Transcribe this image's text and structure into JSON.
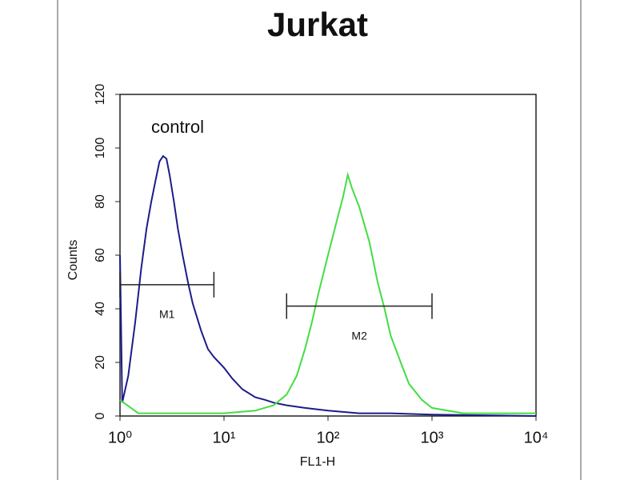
{
  "chart_data": {
    "type": "line",
    "title": "Jurkat",
    "xlabel": "FL1-H",
    "ylabel": "Counts",
    "xscale": "log",
    "xlim": [
      1,
      10000
    ],
    "xticks": [
      {
        "value": 1,
        "label": "10⁰"
      },
      {
        "value": 10,
        "label": "10¹"
      },
      {
        "value": 100,
        "label": "10²"
      },
      {
        "value": 1000,
        "label": "10³"
      },
      {
        "value": 10000,
        "label": "10⁴"
      }
    ],
    "ylim": [
      0,
      120
    ],
    "yticks": [
      0,
      20,
      40,
      60,
      80,
      100,
      120
    ],
    "annotation": "control",
    "series": [
      {
        "color": "#1c1c8a",
        "x": [
          1,
          1.05,
          1.2,
          1.4,
          1.6,
          1.8,
          2,
          2.2,
          2.4,
          2.6,
          2.8,
          3,
          3.3,
          3.6,
          4,
          4.5,
          5,
          6,
          7,
          8,
          10,
          12,
          15,
          20,
          25,
          30,
          40,
          60,
          100,
          200,
          400,
          1000,
          10000
        ],
        "values": [
          60,
          5,
          15,
          35,
          55,
          70,
          80,
          88,
          95,
          97,
          96,
          90,
          80,
          70,
          60,
          50,
          42,
          32,
          25,
          22,
          18,
          14,
          10,
          7,
          6,
          5,
          4,
          3,
          2,
          1,
          1,
          0.5,
          0
        ]
      },
      {
        "color": "#44dd44",
        "x": [
          1,
          1.5,
          3,
          10,
          20,
          30,
          40,
          50,
          60,
          70,
          80,
          100,
          120,
          140,
          155,
          170,
          200,
          250,
          300,
          350,
          400,
          500,
          600,
          800,
          1000,
          2000,
          10000
        ],
        "values": [
          6,
          1,
          1,
          1,
          2,
          4,
          8,
          15,
          25,
          35,
          45,
          60,
          72,
          82,
          90,
          85,
          78,
          65,
          50,
          40,
          30,
          20,
          12,
          6,
          3,
          1,
          1
        ]
      }
    ],
    "markers": [
      {
        "label": "M1",
        "x": [
          1,
          8
        ],
        "y": 49
      },
      {
        "label": "M2",
        "x": [
          40,
          1000
        ],
        "y": 41
      }
    ]
  }
}
